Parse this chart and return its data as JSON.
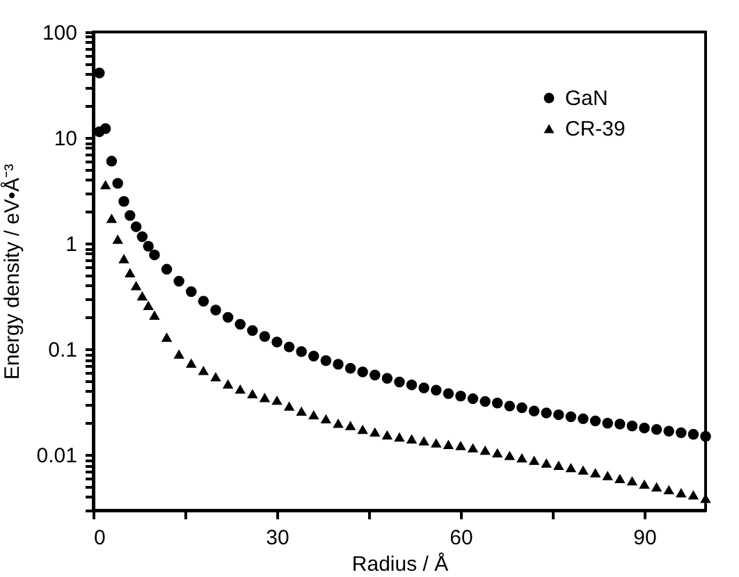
{
  "chart_data": {
    "type": "scatter",
    "xlabel": "Radius / Å",
    "ylabel": "Energy density / eV•Å⁻³",
    "log": "y",
    "xlim": [
      0,
      100
    ],
    "xticks": [
      0,
      {
        "value": 15,
        "label": null
      },
      30,
      {
        "value": 45,
        "label": null
      },
      60,
      {
        "value": 75,
        "label": null
      },
      90
    ],
    "ylim": [
      0.003,
      100
    ],
    "yticks": [
      {
        "value": 0.003,
        "label": null
      },
      {
        "value": 0.004,
        "label": null
      },
      {
        "value": 0.005,
        "label": null
      },
      {
        "value": 0.006,
        "label": null
      },
      {
        "value": 0.007,
        "label": null
      },
      {
        "value": 0.008,
        "label": null
      },
      {
        "value": 0.009,
        "label": null
      },
      0.01,
      {
        "value": 0.02,
        "label": null
      },
      {
        "value": 0.03,
        "label": null
      },
      {
        "value": 0.04,
        "label": null
      },
      {
        "value": 0.05,
        "label": null
      },
      {
        "value": 0.06,
        "label": null
      },
      {
        "value": 0.07,
        "label": null
      },
      {
        "value": 0.08,
        "label": null
      },
      {
        "value": 0.09,
        "label": null
      },
      0.1,
      {
        "value": 0.2,
        "label": null
      },
      {
        "value": 0.3,
        "label": null
      },
      {
        "value": 0.4,
        "label": null
      },
      {
        "value": 0.5,
        "label": null
      },
      {
        "value": 0.6,
        "label": null
      },
      {
        "value": 0.7,
        "label": null
      },
      {
        "value": 0.8,
        "label": null
      },
      {
        "value": 0.9,
        "label": null
      },
      1,
      {
        "value": 2,
        "label": null
      },
      {
        "value": 3,
        "label": null
      },
      {
        "value": 4,
        "label": null
      },
      {
        "value": 5,
        "label": null
      },
      {
        "value": 6,
        "label": null
      },
      {
        "value": 7,
        "label": null
      },
      {
        "value": 8,
        "label": null
      },
      {
        "value": 9,
        "label": null
      },
      10,
      {
        "value": 20,
        "label": null
      },
      {
        "value": 30,
        "label": null
      },
      {
        "value": 40,
        "label": null
      },
      {
        "value": 50,
        "label": null
      },
      {
        "value": 60,
        "label": null
      },
      {
        "value": 70,
        "label": null
      },
      {
        "value": 80,
        "label": null
      },
      {
        "value": 90,
        "label": null
      },
      100
    ],
    "grid": false,
    "legend": "top right",
    "series": [
      {
        "name": "GaN",
        "color": "#000000",
        "marker": "circle",
        "x": [
          1,
          1,
          2,
          3,
          4,
          5,
          6,
          7,
          8,
          9,
          10,
          12,
          14,
          16,
          18,
          20,
          22,
          24,
          26,
          28,
          30,
          32,
          34,
          36,
          38,
          40,
          42,
          44,
          46,
          48,
          50,
          52,
          54,
          56,
          58,
          60,
          62,
          64,
          66,
          68,
          70,
          72,
          74,
          76,
          78,
          80,
          82,
          84,
          86,
          88,
          90,
          92,
          94,
          96,
          98,
          100
        ],
        "values": [
          41,
          11.4,
          12.2,
          6,
          3.7,
          2.5,
          1.84,
          1.44,
          1.16,
          0.94,
          0.78,
          0.57,
          0.44,
          0.35,
          0.285,
          0.235,
          0.2,
          0.172,
          0.15,
          0.132,
          0.117,
          0.105,
          0.095,
          0.086,
          0.078,
          0.072,
          0.066,
          0.061,
          0.057,
          0.053,
          0.049,
          0.046,
          0.043,
          0.041,
          0.038,
          0.036,
          0.034,
          0.032,
          0.031,
          0.029,
          0.028,
          0.026,
          0.025,
          0.024,
          0.023,
          0.022,
          0.021,
          0.02,
          0.0196,
          0.0188,
          0.018,
          0.0174,
          0.0168,
          0.0162,
          0.0157,
          0.015
        ]
      },
      {
        "name": "CR-39",
        "color": "#000000",
        "marker": "triangle",
        "x": [
          2,
          3,
          4,
          5,
          6,
          7,
          8,
          9,
          10,
          12,
          14,
          16,
          18,
          20,
          22,
          24,
          26,
          28,
          30,
          32,
          34,
          36,
          38,
          40,
          42,
          44,
          46,
          48,
          50,
          52,
          54,
          56,
          58,
          60,
          62,
          64,
          66,
          68,
          70,
          72,
          74,
          76,
          78,
          80,
          82,
          84,
          86,
          88,
          90,
          92,
          94,
          96,
          98,
          100
        ],
        "values": [
          3.6,
          1.73,
          1.1,
          0.72,
          0.53,
          0.4,
          0.32,
          0.26,
          0.21,
          0.13,
          0.09,
          0.074,
          0.063,
          0.055,
          0.047,
          0.042,
          0.038,
          0.035,
          0.033,
          0.029,
          0.026,
          0.024,
          0.022,
          0.02,
          0.019,
          0.0175,
          0.0165,
          0.0155,
          0.0148,
          0.0142,
          0.0136,
          0.013,
          0.0126,
          0.0123,
          0.0117,
          0.0111,
          0.0105,
          0.0099,
          0.0094,
          0.0089,
          0.0084,
          0.008,
          0.0076,
          0.0072,
          0.0068,
          0.0064,
          0.006,
          0.0057,
          0.0053,
          0.005,
          0.0047,
          0.0044,
          0.0042,
          0.0039
        ]
      }
    ]
  }
}
